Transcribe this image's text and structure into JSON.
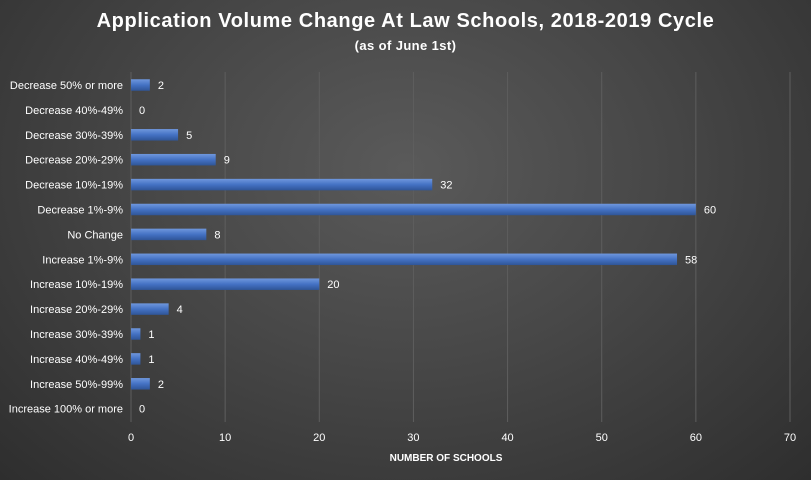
{
  "chart_data": {
    "type": "bar",
    "orientation": "horizontal",
    "title": "Application Volume Change At Law Schools, 2018-2019 Cycle",
    "subtitle": "(as of June 1st)",
    "xlabel": "NUMBER OF SCHOOLS",
    "ylabel": "",
    "categories": [
      "Decrease 50% or more",
      "Decrease 40%-49%",
      "Decrease 30%-39%",
      "Decrease 20%-29%",
      "Decrease 10%-19%",
      "Decrease 1%-9%",
      "No Change",
      "Increase 1%-9%",
      "Increase 10%-19%",
      "Increase 20%-29%",
      "Increase 30%-39%",
      "Increase 40%-49%",
      "Increase 50%-99%",
      "Increase 100% or more"
    ],
    "values": [
      2,
      0,
      5,
      9,
      32,
      60,
      8,
      58,
      20,
      4,
      1,
      1,
      2,
      0
    ],
    "xlim": [
      0,
      70
    ],
    "xticks": [
      0,
      10,
      20,
      30,
      40,
      50,
      60,
      70
    ],
    "grid": true,
    "data_labels": true,
    "legend": "none",
    "bar_color": "#4472c4",
    "background_color": "#404040"
  }
}
